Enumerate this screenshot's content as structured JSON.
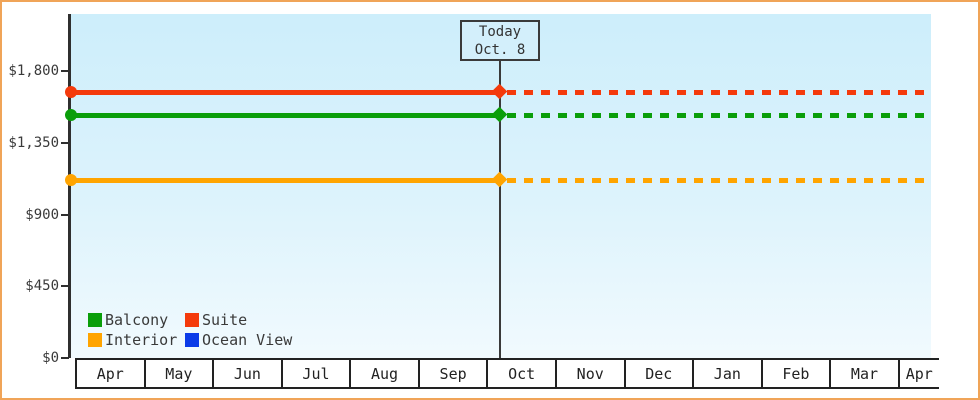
{
  "frame": {
    "border_color": "#f0a458",
    "background": "#ffffff"
  },
  "chart": {
    "bg_top_color": "#cdeefb",
    "bg_bottom_color": "#f1fafe",
    "axis_color": "#2f2f2f",
    "text_color": "#3a3a3a"
  },
  "today_box": {
    "line1": "Today",
    "line2": "Oct. 8"
  },
  "legend": {
    "items": [
      {
        "label": "Balcony",
        "color": "#0a9e0a"
      },
      {
        "label": "Suite",
        "color": "#f43a0c"
      },
      {
        "label": "Interior",
        "color": "#ffa400"
      },
      {
        "label": "Ocean View",
        "color": "#0b3be8"
      }
    ]
  },
  "chart_data": {
    "type": "line",
    "title": "",
    "xlabel": "",
    "ylabel": "",
    "categories": [
      "Apr",
      "May",
      "Jun",
      "Jul",
      "Aug",
      "Sep",
      "Oct",
      "Nov",
      "Dec",
      "Jan",
      "Feb",
      "Mar",
      "Apr"
    ],
    "y_ticks": [
      {
        "label": "$0",
        "value": 0
      },
      {
        "label": "$450",
        "value": 450
      },
      {
        "label": "$900",
        "value": 900
      },
      {
        "label": "$1,350",
        "value": 1350
      },
      {
        "label": "$1,800",
        "value": 1800
      }
    ],
    "ylim": [
      0,
      2160
    ],
    "grid": false,
    "legend_position": "bottom-left",
    "series": [
      {
        "name": "Balcony",
        "color": "#0a9e0a",
        "value": 1525,
        "solid_until_today": true,
        "dashed_after_today": true
      },
      {
        "name": "Suite",
        "color": "#f43a0c",
        "value": 1670,
        "solid_until_today": true,
        "dashed_after_today": true
      },
      {
        "name": "Interior",
        "color": "#ffa400",
        "value": 1120,
        "solid_until_today": true,
        "dashed_after_today": true
      },
      {
        "name": "Ocean View",
        "color": "#0b3be8",
        "value": null,
        "solid_until_today": false,
        "dashed_after_today": false
      }
    ],
    "today": {
      "label": [
        "Today",
        "Oct. 8"
      ],
      "month_index": 6,
      "day": 8,
      "days_in_month": 31
    }
  }
}
